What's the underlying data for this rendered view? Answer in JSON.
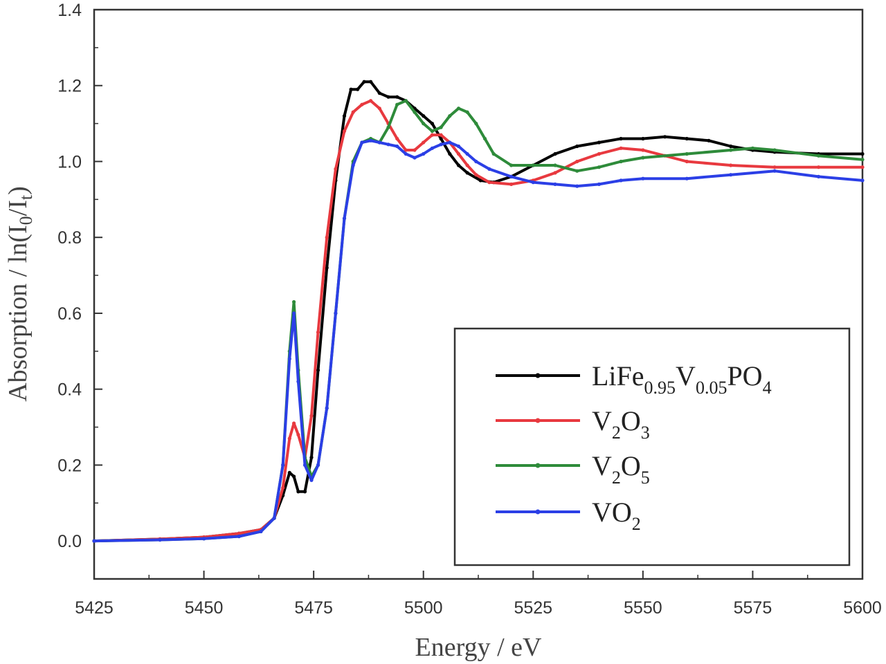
{
  "chart_data": {
    "type": "line",
    "title": "",
    "xlabel": "Energy / eV",
    "ylabel": {
      "base": "Absorption / ln(I",
      "sub1": "0",
      "mid": "/I",
      "sub2": "t",
      "end": ")"
    },
    "xlim": [
      5425,
      5600
    ],
    "ylim": [
      -0.1,
      1.4
    ],
    "x_ticks": [
      "5425",
      "5450",
      "5475",
      "5500",
      "5525",
      "5550",
      "5575",
      "5600"
    ],
    "y_ticks": [
      "0.0",
      "0.2",
      "0.4",
      "0.6",
      "0.8",
      "1.0",
      "1.2",
      "1.4"
    ],
    "legend_position": "bottom-right",
    "series": [
      {
        "name": "LiFe0.95V0.05PO4",
        "label_parts": [
          {
            "t": "LiFe",
            "sub": false
          },
          {
            "t": "0.95",
            "sub": true
          },
          {
            "t": "V",
            "sub": false
          },
          {
            "t": "0.05",
            "sub": true
          },
          {
            "t": "PO",
            "sub": false
          },
          {
            "t": "4",
            "sub": true
          }
        ],
        "color": "#000000",
        "x": [
          5425,
          5440,
          5450,
          5458,
          5463,
          5466,
          5468,
          5469.5,
          5470.5,
          5471.5,
          5473,
          5474.5,
          5476,
          5478,
          5480,
          5482,
          5483.5,
          5485,
          5486.5,
          5488,
          5490,
          5492,
          5494,
          5496,
          5498,
          5500,
          5502,
          5504,
          5506,
          5508,
          5510,
          5513,
          5516,
          5520,
          5525,
          5530,
          5535,
          5540,
          5545,
          5550,
          5555,
          5560,
          5565,
          5570,
          5575,
          5580,
          5590,
          5600
        ],
        "y": [
          0.0,
          0.005,
          0.01,
          0.02,
          0.03,
          0.06,
          0.12,
          0.18,
          0.17,
          0.13,
          0.13,
          0.22,
          0.45,
          0.72,
          0.95,
          1.12,
          1.19,
          1.19,
          1.21,
          1.21,
          1.18,
          1.17,
          1.17,
          1.16,
          1.14,
          1.12,
          1.1,
          1.06,
          1.02,
          0.99,
          0.97,
          0.95,
          0.945,
          0.96,
          0.99,
          1.02,
          1.04,
          1.05,
          1.06,
          1.06,
          1.065,
          1.06,
          1.055,
          1.04,
          1.03,
          1.025,
          1.02,
          1.02
        ]
      },
      {
        "name": "V2O3",
        "label_parts": [
          {
            "t": "V",
            "sub": false
          },
          {
            "t": "2",
            "sub": true
          },
          {
            "t": "O",
            "sub": false
          },
          {
            "t": "3",
            "sub": true
          }
        ],
        "color": "#e8393f",
        "x": [
          5425,
          5440,
          5450,
          5458,
          5463,
          5466,
          5468,
          5469.5,
          5470.5,
          5471.5,
          5473,
          5474.5,
          5476,
          5478,
          5480,
          5482,
          5484,
          5486,
          5488,
          5490,
          5492,
          5494,
          5496,
          5498,
          5500,
          5502,
          5504,
          5506,
          5508,
          5510,
          5512,
          5515,
          5520,
          5525,
          5530,
          5535,
          5540,
          5545,
          5550,
          5555,
          5560,
          5570,
          5580,
          5590,
          5600
        ],
        "y": [
          0.0,
          0.005,
          0.01,
          0.02,
          0.03,
          0.06,
          0.14,
          0.27,
          0.31,
          0.28,
          0.22,
          0.33,
          0.55,
          0.8,
          0.98,
          1.08,
          1.13,
          1.15,
          1.16,
          1.14,
          1.1,
          1.06,
          1.03,
          1.03,
          1.05,
          1.07,
          1.07,
          1.05,
          1.02,
          0.99,
          0.965,
          0.945,
          0.94,
          0.95,
          0.97,
          1.0,
          1.02,
          1.035,
          1.03,
          1.015,
          1.0,
          0.99,
          0.985,
          0.985,
          0.985
        ]
      },
      {
        "name": "V2O5",
        "label_parts": [
          {
            "t": "V",
            "sub": false
          },
          {
            "t": "2",
            "sub": true
          },
          {
            "t": "O",
            "sub": false
          },
          {
            "t": "5",
            "sub": true
          }
        ],
        "color": "#2e8b3a",
        "x": [
          5425,
          5440,
          5450,
          5458,
          5463,
          5466,
          5468,
          5469.5,
          5470.5,
          5471.5,
          5473,
          5474.5,
          5476,
          5478,
          5480,
          5482,
          5484,
          5486,
          5488,
          5490,
          5492,
          5494,
          5496,
          5498,
          5500,
          5502,
          5504,
          5506,
          5508,
          5510,
          5512,
          5514,
          5516,
          5520,
          5525,
          5530,
          5535,
          5540,
          5545,
          5550,
          5560,
          5570,
          5575,
          5580,
          5590,
          5600
        ],
        "y": [
          0.0,
          0.003,
          0.006,
          0.012,
          0.025,
          0.06,
          0.2,
          0.5,
          0.63,
          0.45,
          0.22,
          0.17,
          0.2,
          0.35,
          0.6,
          0.85,
          1.0,
          1.05,
          1.06,
          1.05,
          1.09,
          1.15,
          1.16,
          1.13,
          1.1,
          1.08,
          1.09,
          1.12,
          1.14,
          1.13,
          1.1,
          1.06,
          1.02,
          0.99,
          0.99,
          0.99,
          0.975,
          0.985,
          1.0,
          1.01,
          1.02,
          1.03,
          1.035,
          1.03,
          1.015,
          1.005
        ]
      },
      {
        "name": "VO2",
        "label_parts": [
          {
            "t": "VO",
            "sub": false
          },
          {
            "t": "2",
            "sub": true
          }
        ],
        "color": "#2b3fe6",
        "x": [
          5425,
          5440,
          5450,
          5458,
          5463,
          5466,
          5468,
          5469.5,
          5470.5,
          5471.5,
          5473,
          5474.5,
          5476,
          5478,
          5480,
          5482,
          5484,
          5486,
          5488,
          5490,
          5492,
          5494,
          5496,
          5498,
          5500,
          5502,
          5504,
          5506,
          5508,
          5510,
          5512,
          5515,
          5520,
          5525,
          5530,
          5535,
          5540,
          5545,
          5550,
          5560,
          5570,
          5580,
          5590,
          5600
        ],
        "y": [
          0.0,
          0.003,
          0.006,
          0.012,
          0.025,
          0.06,
          0.2,
          0.48,
          0.6,
          0.42,
          0.2,
          0.16,
          0.2,
          0.35,
          0.6,
          0.85,
          0.99,
          1.05,
          1.055,
          1.05,
          1.045,
          1.04,
          1.02,
          1.01,
          1.02,
          1.035,
          1.045,
          1.05,
          1.04,
          1.02,
          1.0,
          0.98,
          0.96,
          0.945,
          0.94,
          0.935,
          0.94,
          0.95,
          0.955,
          0.955,
          0.965,
          0.975,
          0.96,
          0.95
        ]
      }
    ]
  }
}
